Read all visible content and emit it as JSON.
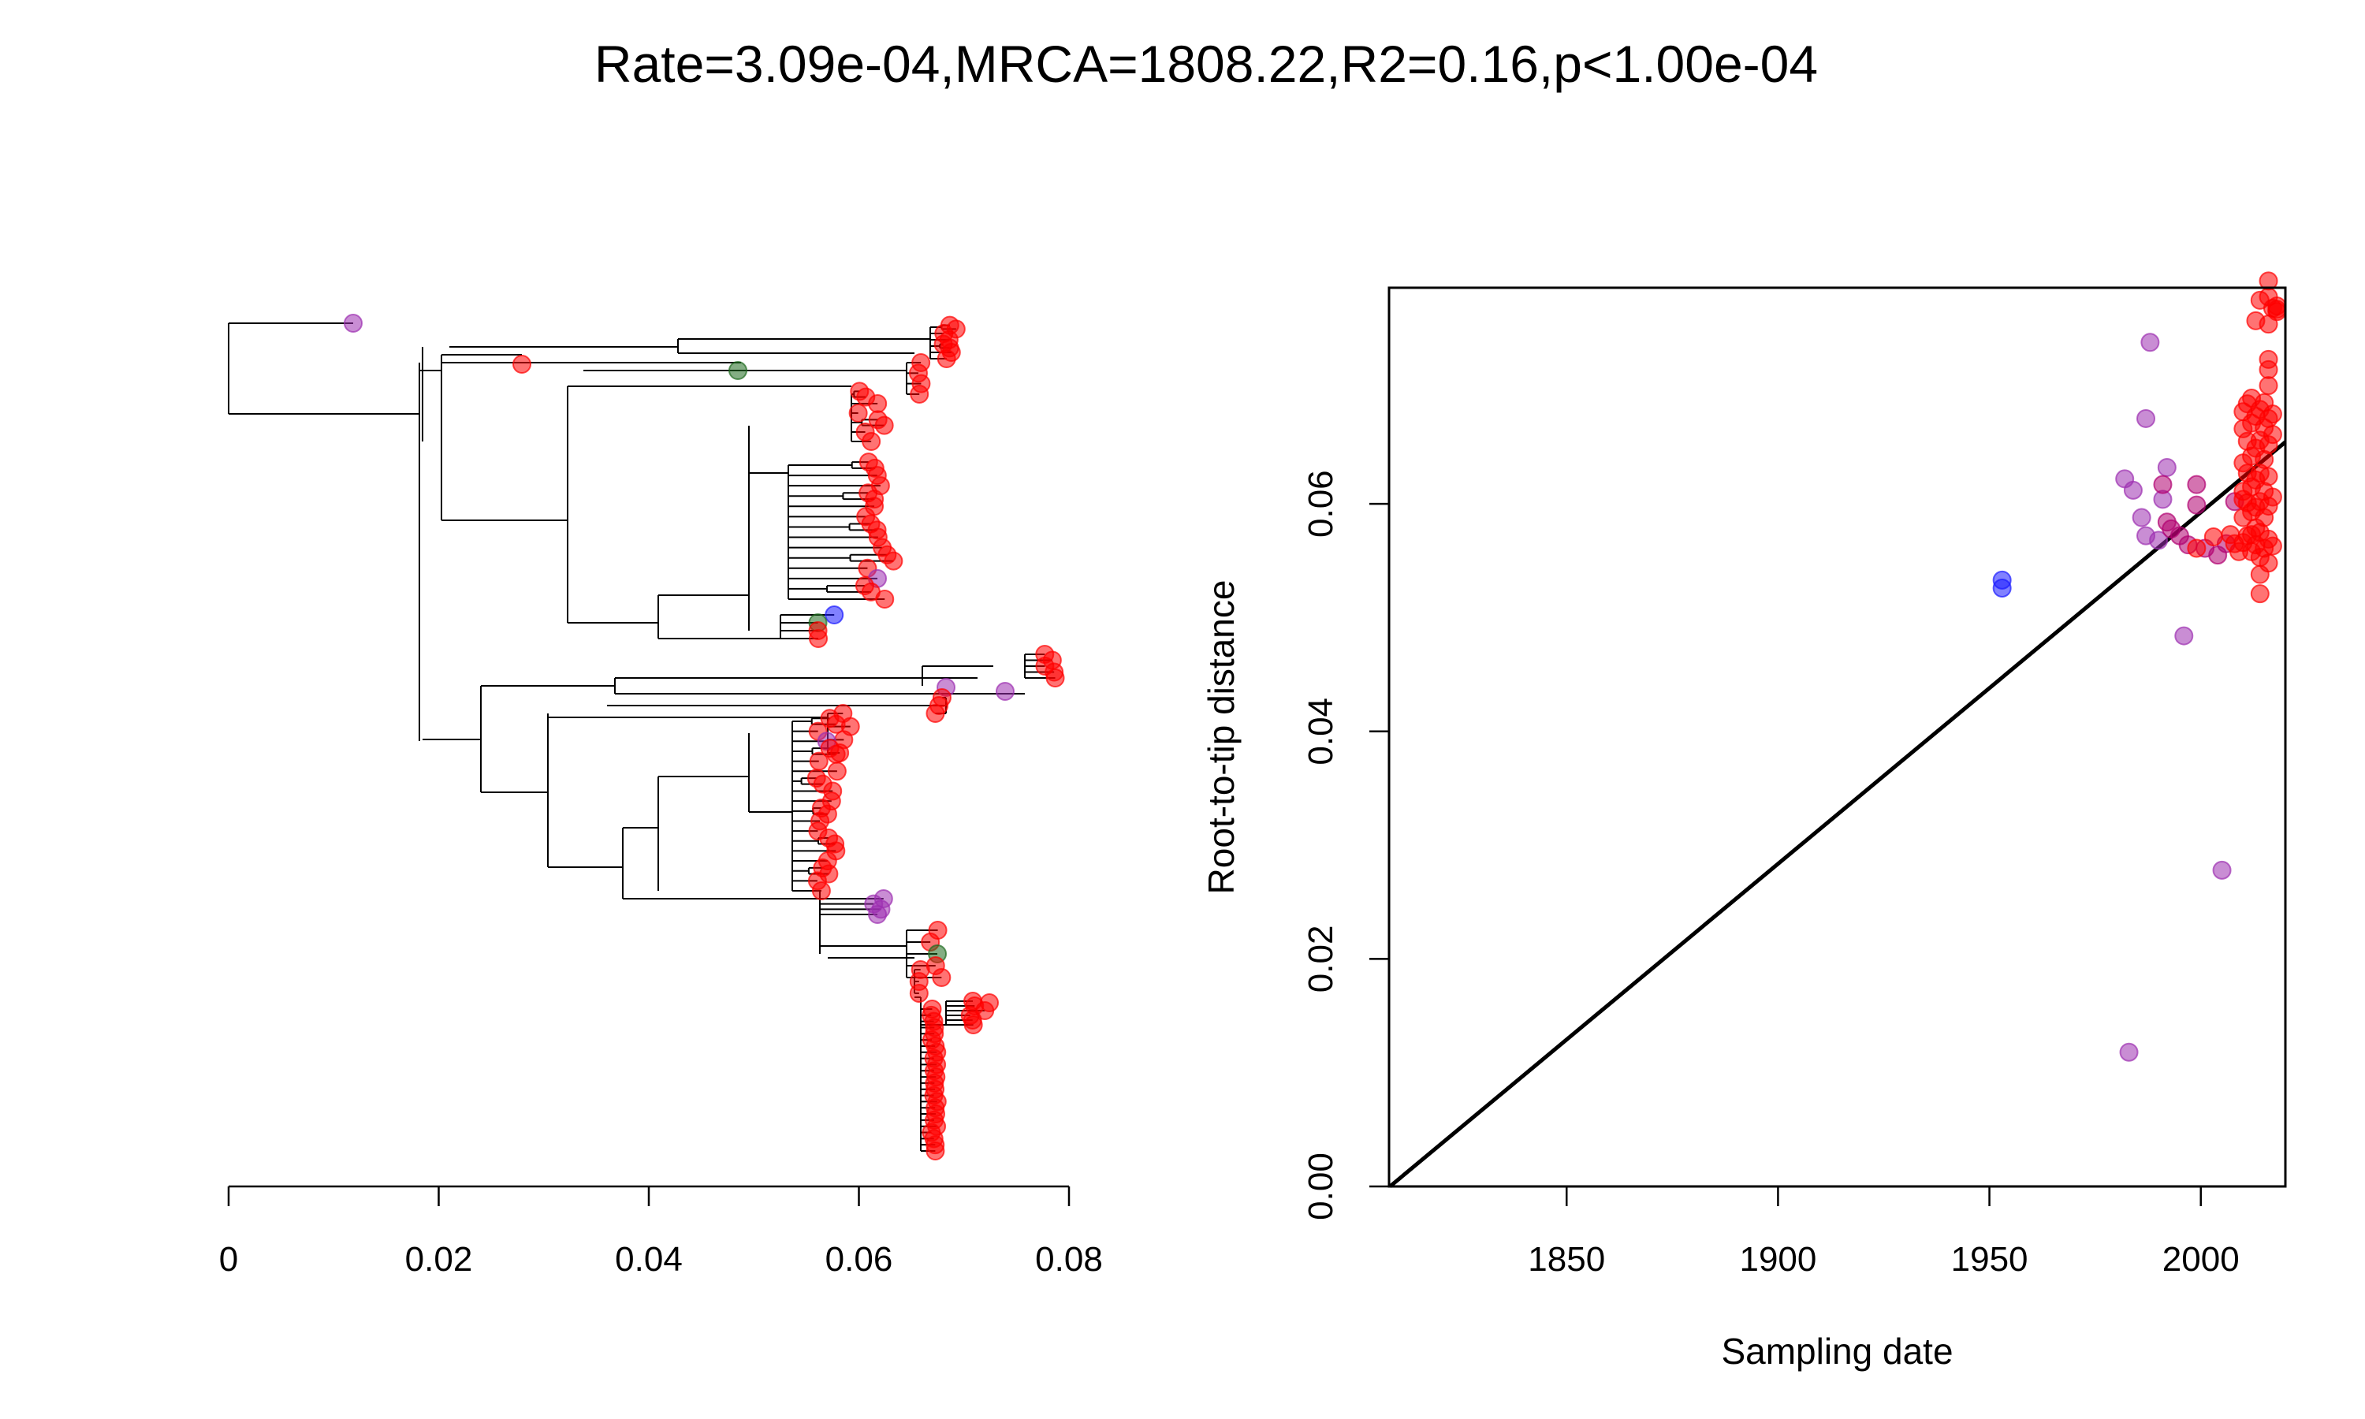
{
  "title": "Rate=3.09e-04,MRCA=1808.22,R2=0.16,p<1.00e-04",
  "colors": {
    "red": "#ff0000",
    "purple": "#9d2fb0",
    "magenta": "#b00070",
    "blue": "#1a1aff",
    "green": "#1f6b1f",
    "line": "#000000"
  },
  "chart_data": [
    {
      "type": "tree",
      "xlabel": "",
      "ylabel": "",
      "xlim": [
        0,
        0.08
      ],
      "x_ticks": [
        0,
        0.02,
        0.04,
        0.06,
        0.08
      ],
      "x_tick_labels": [
        "0",
        "0.02",
        "0.04",
        "0.06",
        "0.08"
      ],
      "grid": false,
      "legend": "none"
    },
    {
      "type": "scatter",
      "xlabel": "Sampling date",
      "ylabel": "Root-to-tip distance",
      "xlim": [
        1808,
        2020
      ],
      "ylim": [
        0,
        0.079
      ],
      "x_ticks": [
        1850,
        1900,
        1950,
        2000
      ],
      "x_tick_labels": [
        "1850",
        "1900",
        "1950",
        "2000"
      ],
      "y_ticks": [
        0,
        0.02,
        0.04,
        0.06
      ],
      "y_tick_labels": [
        "0.00",
        "0.02",
        "0.04",
        "0.06"
      ],
      "grid": false,
      "legend": "none",
      "regression": {
        "slope": 0.000309,
        "x_intercept": 1808.22,
        "r2": 0.16
      },
      "series": [
        {
          "color": "blue",
          "points": [
            [
              1953,
              0.0533
            ],
            [
              1953,
              0.0526
            ]
          ]
        },
        {
          "color": "purple",
          "points": [
            [
              1983,
              0.0118
            ],
            [
              1988,
              0.0742
            ],
            [
              1987,
              0.0675
            ],
            [
              1982,
              0.0622
            ],
            [
              1984,
              0.0612
            ],
            [
              1986,
              0.0588
            ],
            [
              1987,
              0.0572
            ],
            [
              1990,
              0.0568
            ],
            [
              1991,
              0.0604
            ],
            [
              1992,
              0.0632
            ],
            [
              1996,
              0.0484
            ],
            [
              2005,
              0.0278
            ]
          ]
        },
        {
          "color": "magenta",
          "points": [
            [
              1991,
              0.0617
            ],
            [
              1992,
              0.0584
            ],
            [
              1993,
              0.0578
            ],
            [
              1995,
              0.0572
            ],
            [
              1997,
              0.0564
            ],
            [
              1999,
              0.0617
            ],
            [
              1999,
              0.0599
            ],
            [
              2001,
              0.0561
            ],
            [
              2004,
              0.0555
            ],
            [
              2006,
              0.0565
            ],
            [
              2008,
              0.0602
            ]
          ]
        },
        {
          "color": "red",
          "points": [
            [
              1999,
              0.0561
            ],
            [
              2003,
              0.0571
            ],
            [
              2007,
              0.0573
            ],
            [
              2008,
              0.0565
            ],
            [
              2009,
              0.0558
            ],
            [
              2010,
              0.0566
            ],
            [
              2010,
              0.0588
            ],
            [
              2010,
              0.0604
            ],
            [
              2010,
              0.0611
            ],
            [
              2010,
              0.0636
            ],
            [
              2010,
              0.0666
            ],
            [
              2010,
              0.0681
            ],
            [
              2011,
              0.0572
            ],
            [
              2011,
              0.0601
            ],
            [
              2011,
              0.0627
            ],
            [
              2011,
              0.0655
            ],
            [
              2011,
              0.0688
            ],
            [
              2012,
              0.0558
            ],
            [
              2012,
              0.0573
            ],
            [
              2012,
              0.0593
            ],
            [
              2012,
              0.0615
            ],
            [
              2012,
              0.0642
            ],
            [
              2012,
              0.0671
            ],
            [
              2012,
              0.0693
            ],
            [
              2013,
              0.0564
            ],
            [
              2013,
              0.0579
            ],
            [
              2013,
              0.0597
            ],
            [
              2013,
              0.0621
            ],
            [
              2013,
              0.0649
            ],
            [
              2013,
              0.0677
            ],
            [
              2013,
              0.0761
            ],
            [
              2014,
              0.0521
            ],
            [
              2014,
              0.0538
            ],
            [
              2014,
              0.0553
            ],
            [
              2014,
              0.0575
            ],
            [
              2014,
              0.0602
            ],
            [
              2014,
              0.0627
            ],
            [
              2014,
              0.0656
            ],
            [
              2014,
              0.0683
            ],
            [
              2014,
              0.0779
            ],
            [
              2015,
              0.0561
            ],
            [
              2015,
              0.0588
            ],
            [
              2015,
              0.0611
            ],
            [
              2015,
              0.0639
            ],
            [
              2015,
              0.0667
            ],
            [
              2015,
              0.0689
            ],
            [
              2016,
              0.0548
            ],
            [
              2016,
              0.0569
            ],
            [
              2016,
              0.0598
            ],
            [
              2016,
              0.0624
            ],
            [
              2016,
              0.0652
            ],
            [
              2016,
              0.0675
            ],
            [
              2016,
              0.0704
            ],
            [
              2016,
              0.0718
            ],
            [
              2016,
              0.0727
            ],
            [
              2016,
              0.0758
            ],
            [
              2016,
              0.0782
            ],
            [
              2016,
              0.0796
            ],
            [
              2017,
              0.0563
            ],
            [
              2017,
              0.0606
            ],
            [
              2017,
              0.0661
            ],
            [
              2017,
              0.0679
            ],
            [
              2017,
              0.0772
            ],
            [
              2018,
              0.0769
            ],
            [
              2018,
              0.0774
            ],
            [
              2018,
              0.0771
            ]
          ]
        }
      ]
    }
  ]
}
